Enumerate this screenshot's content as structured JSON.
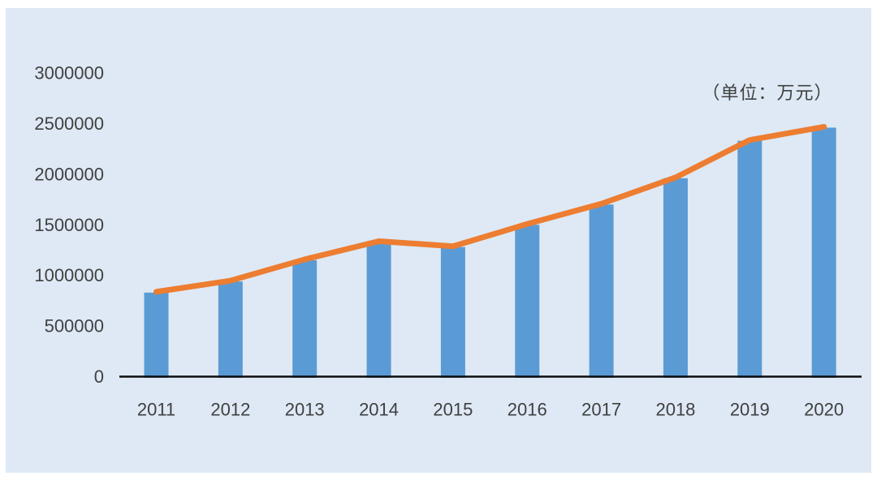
{
  "chart_data": {
    "type": "bar",
    "subtype": "bar-with-line-overlay",
    "title": "",
    "unit_label": "（单位：万元）",
    "categories": [
      "2011",
      "2012",
      "2013",
      "2014",
      "2015",
      "2016",
      "2017",
      "2018",
      "2019",
      "2020"
    ],
    "series": [
      {
        "type": "bar",
        "color": "#5b9bd5",
        "values": [
          830000,
          940000,
          1150000,
          1330000,
          1280000,
          1500000,
          1700000,
          1960000,
          2330000,
          2460000
        ]
      },
      {
        "type": "line",
        "color": "#ed7d31",
        "values": [
          830000,
          940000,
          1150000,
          1330000,
          1280000,
          1500000,
          1700000,
          1960000,
          2330000,
          2460000
        ]
      }
    ],
    "xlabel": "",
    "ylabel": "",
    "ylim": [
      0,
      3000000
    ],
    "y_ticks": [
      0,
      500000,
      1000000,
      1500000,
      2000000,
      2500000,
      3000000
    ],
    "grid": false,
    "legend": "none",
    "colors": {
      "panel_background": "#dee9f5",
      "bar": "#5b9bd5",
      "line": "#ed7d31",
      "axis": "#0d0d0d",
      "text": "#404040"
    }
  }
}
